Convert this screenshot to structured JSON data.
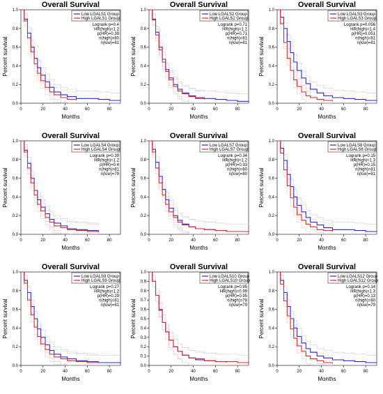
{
  "colors": {
    "low": "#2626e6",
    "high": "#e62626",
    "low_ci": "#9999ee",
    "high_ci": "#ee9999"
  },
  "chart_data": [
    {
      "type": "line",
      "title": "Overall Survival",
      "xlabel": "Months",
      "ylabel": "Percent survival",
      "xlim": [
        0,
        90
      ],
      "ylim": [
        0,
        1
      ],
      "xticks": [
        "0",
        "20",
        "40",
        "60",
        "80"
      ],
      "yticks": [
        "0.0",
        "0.2",
        "0.4",
        "0.6",
        "0.8",
        "1.0"
      ],
      "legend": [
        "Low LGALS1 Group",
        "High LGALS1 Group"
      ],
      "stats": [
        "Logrank p=0.4",
        "HR(high)=1.2",
        "p(HR)=0.39",
        "n(high)=80",
        "n(low)=81"
      ],
      "series": [
        {
          "name": "Low LGALS1 Group",
          "x": [
            0,
            3,
            6,
            9,
            12,
            15,
            18,
            22,
            26,
            30,
            36,
            42,
            50,
            60,
            70,
            80,
            90
          ],
          "y": [
            1.0,
            0.9,
            0.75,
            0.6,
            0.48,
            0.38,
            0.3,
            0.23,
            0.17,
            0.12,
            0.09,
            0.07,
            0.05,
            0.05,
            0.04,
            0.03,
            0.03
          ]
        },
        {
          "name": "High LGALS1 Group",
          "x": [
            0,
            3,
            6,
            9,
            12,
            15,
            18,
            22,
            26,
            30,
            36,
            42,
            50
          ],
          "y": [
            1.0,
            0.88,
            0.7,
            0.55,
            0.42,
            0.32,
            0.24,
            0.17,
            0.12,
            0.09,
            0.06,
            0.04,
            0.03
          ]
        }
      ]
    },
    {
      "type": "line",
      "title": "Overall Survival",
      "xlabel": "Months",
      "ylabel": "Percent survival",
      "xlim": [
        0,
        90
      ],
      "ylim": [
        0,
        1
      ],
      "xticks": [
        "0",
        "20",
        "40",
        "60",
        "80"
      ],
      "yticks": [
        "0.0",
        "0.2",
        "0.4",
        "0.6",
        "0.8",
        "1.0"
      ],
      "legend": [
        "Low LGALS2 Group",
        "High LGALS2 Group"
      ],
      "stats": [
        "Logrank p=0.71",
        "HR(high)=1.1",
        "p(HR)=0.71",
        "n(high)=81",
        "n(low)=81"
      ],
      "series": [
        {
          "name": "Low LGALS2 Group",
          "x": [
            0,
            3,
            6,
            9,
            12,
            15,
            18,
            22,
            26,
            30,
            36,
            42,
            50,
            60,
            70,
            80,
            90
          ],
          "y": [
            1.0,
            0.9,
            0.76,
            0.6,
            0.47,
            0.36,
            0.27,
            0.2,
            0.15,
            0.11,
            0.08,
            0.06,
            0.05,
            0.04,
            0.03,
            0.02,
            0.02
          ]
        },
        {
          "name": "High LGALS2 Group",
          "x": [
            0,
            3,
            6,
            9,
            12,
            15,
            18,
            22,
            26,
            30,
            36,
            42,
            50
          ],
          "y": [
            1.0,
            0.89,
            0.73,
            0.57,
            0.44,
            0.34,
            0.25,
            0.18,
            0.13,
            0.1,
            0.07,
            0.05,
            0.04
          ]
        }
      ]
    },
    {
      "type": "line",
      "title": "Overall Survival",
      "xlabel": "Months",
      "ylabel": "Percent survival",
      "xlim": [
        0,
        90
      ],
      "ylim": [
        0,
        1
      ],
      "xticks": [
        "0",
        "20",
        "40",
        "60",
        "80"
      ],
      "yticks": [
        "0.0",
        "0.2",
        "0.4",
        "0.6",
        "0.8",
        "1.0"
      ],
      "legend": [
        "Low LGALS3 Group",
        "High LGALS3 Group"
      ],
      "stats": [
        "Logrank p=0.056",
        "HR(high)=1.4",
        "p(HR)=0.051",
        "n(high)=81",
        "n(low)=81"
      ],
      "series": [
        {
          "name": "Low LGALS3 Group",
          "x": [
            0,
            3,
            6,
            9,
            12,
            15,
            18,
            22,
            26,
            30,
            36,
            42,
            50,
            60,
            70,
            80,
            90
          ],
          "y": [
            1.0,
            0.92,
            0.8,
            0.66,
            0.54,
            0.44,
            0.35,
            0.27,
            0.21,
            0.15,
            0.11,
            0.08,
            0.06,
            0.05,
            0.04,
            0.03,
            0.03
          ]
        },
        {
          "name": "High LGALS3 Group",
          "x": [
            0,
            3,
            6,
            9,
            12,
            15,
            18,
            22,
            26,
            30,
            36,
            42,
            50
          ],
          "y": [
            1.0,
            0.85,
            0.65,
            0.48,
            0.35,
            0.25,
            0.18,
            0.12,
            0.08,
            0.06,
            0.04,
            0.03,
            0.02
          ]
        }
      ]
    },
    {
      "type": "line",
      "title": "Overall Survival",
      "xlabel": "Months",
      "ylabel": "Percent survival",
      "xlim": [
        0,
        90
      ],
      "ylim": [
        0,
        1
      ],
      "xticks": [
        "0",
        "20",
        "40",
        "60",
        "80"
      ],
      "yticks": [
        "0.0",
        "0.2",
        "0.4",
        "0.6",
        "0.8",
        "1.0"
      ],
      "legend": [
        "Low LGALS4 Group",
        "High LGALS4 Group"
      ],
      "stats": [
        "Logrank p=0.39",
        "HR(high)=1.2",
        "p(HR)=0.4",
        "n(high)=81",
        "n(low)=79"
      ],
      "series": [
        {
          "name": "Low LGALS4 Group",
          "x": [
            0,
            3,
            6,
            9,
            12,
            15,
            18,
            22,
            26,
            30,
            36,
            42,
            50,
            60,
            70
          ],
          "y": [
            1.0,
            0.9,
            0.76,
            0.6,
            0.47,
            0.37,
            0.29,
            0.22,
            0.16,
            0.12,
            0.09,
            0.06,
            0.05,
            0.04,
            0.03
          ]
        },
        {
          "name": "High LGALS4 Group",
          "x": [
            0,
            3,
            6,
            9,
            12,
            15,
            18,
            22,
            26,
            30,
            36,
            42,
            50,
            60,
            70
          ],
          "y": [
            1.0,
            0.88,
            0.71,
            0.55,
            0.42,
            0.32,
            0.25,
            0.18,
            0.13,
            0.09,
            0.07,
            0.05,
            0.04,
            0.03,
            0.02
          ]
        }
      ]
    },
    {
      "type": "line",
      "title": "Overall Survival",
      "xlabel": "Months",
      "ylabel": "Percent survival",
      "xlim": [
        0,
        90
      ],
      "ylim": [
        0,
        1
      ],
      "xticks": [
        "0",
        "20",
        "40",
        "60",
        "80"
      ],
      "yticks": [
        "0.0",
        "0.2",
        "0.4",
        "0.6",
        "0.8",
        "1.0"
      ],
      "legend": [
        "Low LGALS7 Group",
        "High LGALS7 Group"
      ],
      "stats": [
        "Logrank p=0.34",
        "HR(high)=1.2",
        "p(HR)=0.33",
        "n(high)=80",
        "n(low)=80"
      ],
      "series": [
        {
          "name": "Low LGALS7 Group",
          "x": [
            0,
            3,
            6,
            9,
            12,
            15,
            18,
            22,
            26,
            30,
            36,
            42,
            50,
            60,
            70
          ],
          "y": [
            1.0,
            0.91,
            0.77,
            0.62,
            0.48,
            0.37,
            0.28,
            0.2,
            0.15,
            0.11,
            0.08,
            0.06,
            0.05,
            0.04,
            0.03
          ]
        },
        {
          "name": "High LGALS7 Group",
          "x": [
            0,
            3,
            6,
            9,
            12,
            15,
            18,
            22,
            26,
            30,
            36,
            42,
            50,
            60,
            70,
            80,
            90
          ],
          "y": [
            1.0,
            0.88,
            0.71,
            0.55,
            0.42,
            0.32,
            0.24,
            0.18,
            0.13,
            0.1,
            0.08,
            0.06,
            0.05,
            0.04,
            0.03,
            0.03,
            0.02
          ]
        }
      ]
    },
    {
      "type": "line",
      "title": "Overall Survival",
      "xlabel": "Months",
      "ylabel": "Percent survival",
      "xlim": [
        0,
        90
      ],
      "ylim": [
        0,
        1
      ],
      "xticks": [
        "0",
        "20",
        "40",
        "60",
        "80"
      ],
      "yticks": [
        "0.0",
        "0.2",
        "0.4",
        "0.6",
        "0.8",
        "1.0"
      ],
      "legend": [
        "Low LGALS8 Group",
        "High LGALS8 Group"
      ],
      "stats": [
        "Logrank p=0.15",
        "HR(high)=1.3",
        "p(HR)=0.15",
        "n(high)=81",
        "n(low)=81"
      ],
      "series": [
        {
          "name": "Low LGALS8 Group",
          "x": [
            0,
            3,
            6,
            9,
            12,
            15,
            18,
            22,
            26,
            30,
            36,
            42,
            50,
            60,
            70,
            80,
            90
          ],
          "y": [
            1.0,
            0.92,
            0.79,
            0.64,
            0.51,
            0.4,
            0.31,
            0.24,
            0.18,
            0.13,
            0.1,
            0.07,
            0.05,
            0.05,
            0.04,
            0.03,
            0.03
          ]
        },
        {
          "name": "High LGALS8 Group",
          "x": [
            0,
            3,
            6,
            9,
            12,
            15,
            18,
            22,
            26,
            30,
            36,
            42,
            50
          ],
          "y": [
            1.0,
            0.87,
            0.69,
            0.52,
            0.39,
            0.29,
            0.21,
            0.15,
            0.11,
            0.08,
            0.05,
            0.04,
            0.03
          ]
        }
      ]
    },
    {
      "type": "line",
      "title": "Overall Survival",
      "xlabel": "Months",
      "ylabel": "Percent survival",
      "xlim": [
        0,
        90
      ],
      "ylim": [
        0,
        1
      ],
      "xticks": [
        "0",
        "20",
        "40",
        "60",
        "80"
      ],
      "yticks": [
        "0.0",
        "0.2",
        "0.4",
        "0.6",
        "0.8",
        "1.0"
      ],
      "legend": [
        "Low LGALS9 Group",
        "High LGALS9 Group"
      ],
      "stats": [
        "Logrank p=0.27",
        "HR(high)=1.2",
        "p(HR)=0.29",
        "n(high)=81",
        "n(low)=81"
      ],
      "series": [
        {
          "name": "Low LGALS9 Group",
          "x": [
            0,
            3,
            6,
            9,
            12,
            15,
            18,
            22,
            26,
            30,
            36,
            42,
            50,
            60,
            70,
            80,
            90
          ],
          "y": [
            1.0,
            0.91,
            0.78,
            0.63,
            0.5,
            0.39,
            0.3,
            0.22,
            0.16,
            0.12,
            0.09,
            0.07,
            0.05,
            0.04,
            0.03,
            0.03,
            0.02
          ]
        },
        {
          "name": "High LGALS9 Group",
          "x": [
            0,
            3,
            6,
            9,
            12,
            15,
            18,
            22,
            26,
            30,
            36,
            42,
            50,
            60,
            70
          ],
          "y": [
            1.0,
            0.88,
            0.7,
            0.54,
            0.41,
            0.31,
            0.23,
            0.17,
            0.12,
            0.09,
            0.07,
            0.05,
            0.04,
            0.03,
            0.03
          ]
        }
      ]
    },
    {
      "type": "line",
      "title": "Overall Survival",
      "xlabel": "Months",
      "ylabel": "Percent survival",
      "xlim": [
        0,
        90
      ],
      "ylim": [
        0,
        1
      ],
      "xticks": [
        "0",
        "20",
        "40",
        "60",
        "80"
      ],
      "yticks": [
        "0.0",
        "0.1",
        "0.2",
        "0.3",
        "0.4",
        "0.5",
        "0.6",
        "0.7",
        "0.8",
        "0.9",
        "1.0"
      ],
      "legend": [
        "Low LGALS10 Group",
        "High LGALS10 Group"
      ],
      "stats": [
        "Logrank p=0.95",
        "HR(high)=0.99",
        "p(HR)=0.95",
        "n(high)=78",
        "n(low)=79"
      ],
      "series": [
        {
          "name": "Low LGALS10 Group",
          "x": [
            0,
            3,
            6,
            9,
            12,
            15,
            18,
            22,
            26,
            30,
            36,
            42,
            50,
            60,
            70
          ],
          "y": [
            1.0,
            0.9,
            0.75,
            0.59,
            0.46,
            0.36,
            0.27,
            0.2,
            0.15,
            0.11,
            0.08,
            0.06,
            0.05,
            0.04,
            0.03
          ]
        },
        {
          "name": "High LGALS10 Group",
          "x": [
            0,
            3,
            6,
            9,
            12,
            15,
            18,
            22,
            26,
            30,
            36,
            42,
            50,
            60,
            70,
            80,
            90
          ],
          "y": [
            1.0,
            0.9,
            0.75,
            0.6,
            0.46,
            0.36,
            0.27,
            0.2,
            0.15,
            0.11,
            0.08,
            0.07,
            0.05,
            0.04,
            0.04,
            0.03,
            0.02
          ]
        }
      ]
    },
    {
      "type": "line",
      "title": "Overall Survival",
      "xlabel": "Months",
      "ylabel": "Percent survival",
      "xlim": [
        0,
        90
      ],
      "ylim": [
        0,
        1
      ],
      "xticks": [
        "0",
        "20",
        "40",
        "60",
        "80"
      ],
      "yticks": [
        "0.0",
        "0.2",
        "0.4",
        "0.6",
        "0.8",
        "1.0"
      ],
      "legend": [
        "Low LGALS12 Group",
        "High LGALS12 Group"
      ],
      "stats": [
        "Logrank p=0.14",
        "HR(high)=1.3",
        "p(HR)=0.13",
        "n(high)=80",
        "n(low)=79"
      ],
      "series": [
        {
          "name": "Low LGALS12 Group",
          "x": [
            0,
            3,
            6,
            9,
            12,
            15,
            18,
            22,
            26,
            30,
            36,
            42,
            50,
            60,
            70,
            80,
            90
          ],
          "y": [
            1.0,
            0.91,
            0.78,
            0.63,
            0.5,
            0.4,
            0.31,
            0.24,
            0.18,
            0.14,
            0.1,
            0.08,
            0.06,
            0.05,
            0.04,
            0.03,
            0.03
          ]
        },
        {
          "name": "High LGALS12 Group",
          "x": [
            0,
            3,
            6,
            9,
            12,
            15,
            18,
            22,
            26,
            30,
            36,
            42,
            50
          ],
          "y": [
            1.0,
            0.87,
            0.69,
            0.53,
            0.39,
            0.29,
            0.21,
            0.15,
            0.1,
            0.07,
            0.05,
            0.03,
            0.02
          ]
        }
      ]
    }
  ]
}
